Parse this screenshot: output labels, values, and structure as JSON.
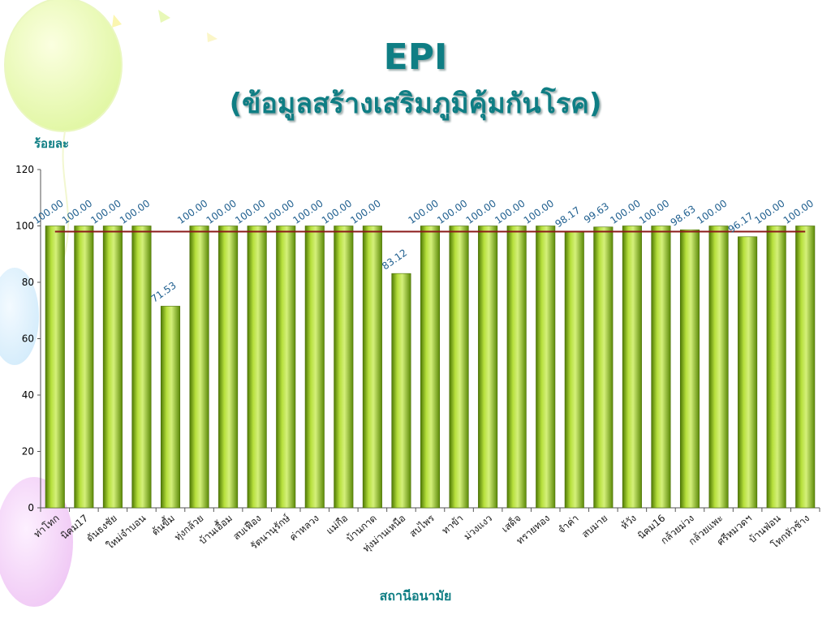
{
  "header": {
    "title": "EPI",
    "subtitle": "(ข้อมูลสร้างเสริมภูมิคุ้มกันโรค)"
  },
  "chart_data": {
    "type": "bar",
    "ylabel": "ร้อยละ",
    "xlabel": "สถานีอนามัย",
    "ylim": [
      0,
      120
    ],
    "yticks": [
      0,
      20,
      40,
      60,
      80,
      100,
      120
    ],
    "grid": false,
    "categories": [
      "ท่าโทก",
      "นิคม17",
      "ดันธงชัย",
      "ใหม่จำบอน",
      "ต้นขี้ม",
      "ทุ่งกล้วย",
      "บ้านเอื้อม",
      "สบเฟือง",
      "รัตนานุรักษ์",
      "ค่าหลวง",
      "แม่กือ",
      "บ้านกาด",
      "ทุ่งม่านเหนือ",
      "สบไพร",
      "ทาข้า",
      "ม่วงแงว",
      "เสด็จ",
      "ทรายทอง",
      "จำค่า",
      "สบมาย",
      "ห้วัง",
      "นิคม16",
      "กล้วยม่วง",
      "กล้วยแพะ",
      "ศรีหมวดฯ",
      "บ้านฟ่อน",
      "โทกหัวช้าง"
    ],
    "values": [
      100.0,
      100.0,
      100.0,
      100.0,
      71.53,
      100.0,
      100.0,
      100.0,
      100.0,
      100.0,
      100.0,
      100.0,
      83.12,
      100.0,
      100.0,
      100.0,
      100.0,
      100.0,
      98.17,
      99.63,
      100.0,
      100.0,
      98.63,
      100.0,
      96.17,
      100.0,
      100.0
    ],
    "data_labels": [
      "100.00",
      "100.00",
      "100.00",
      "100.00",
      "71.53",
      "100.00",
      "100.00",
      "100.00",
      "100.00",
      "100.00",
      "100.00",
      "100.00",
      "83.12",
      "100.00",
      "100.00",
      "100.00",
      "100.00",
      "100.00",
      "98.17",
      "99.63",
      "100.00",
      "100.00",
      "98.63",
      "100.00",
      "96.17",
      "100.00",
      "100.00"
    ],
    "reference_line": 98,
    "colors": {
      "bar": "#8fbc1b",
      "bar_dark": "#4f7a05",
      "bar_light": "#d4f07a",
      "reference_line": "#8b1a1a",
      "axis_text": "#000000",
      "label_text": "#1f5f8f",
      "title_text": "#0f7e84"
    }
  }
}
